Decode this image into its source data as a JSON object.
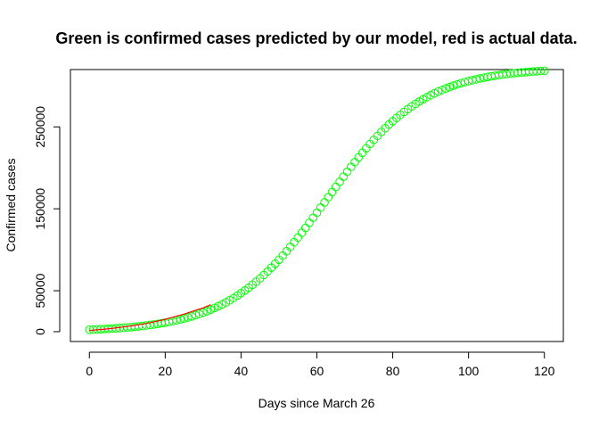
{
  "chart_data": {
    "type": "scatter",
    "title": "Green is confirmed cases predicted by our model, red is actual data.",
    "xlabel": "Days since March 26",
    "ylabel": "Confirmed cases",
    "xlim": [
      -5,
      125
    ],
    "ylim": [
      -12000,
      320000
    ],
    "x_ticks": [
      0,
      20,
      40,
      60,
      80,
      100,
      120
    ],
    "x_tick_labels": [
      "0",
      "20",
      "40",
      "60",
      "80",
      "100",
      "120"
    ],
    "y_ticks": [
      0,
      50000,
      150000,
      250000
    ],
    "y_tick_labels": [
      "0",
      "50000",
      "150000",
      "250000"
    ],
    "grid": false,
    "legend": "none",
    "series": [
      {
        "color": "#00ff00",
        "marker": "open-circle",
        "logistic": {
          "K": 322000,
          "r": 0.0785,
          "t0": 62.5
        },
        "x": [
          0,
          10,
          20,
          30,
          40,
          50,
          60,
          62.5,
          70,
          80,
          90,
          100,
          110,
          120
        ],
        "y": [
          2300,
          6000,
          13500,
          28000,
          55000,
          96000,
          146500,
          161000,
          196000,
          240000,
          282000,
          305500,
          316000,
          320500
        ]
      },
      {
        "color": "#ff0000",
        "marker": "line",
        "x": [
          0,
          5,
          10,
          15,
          20,
          25,
          30,
          32
        ],
        "y": [
          1500,
          3500,
          6300,
          10000,
          15000,
          21500,
          29000,
          33000
        ]
      }
    ]
  }
}
